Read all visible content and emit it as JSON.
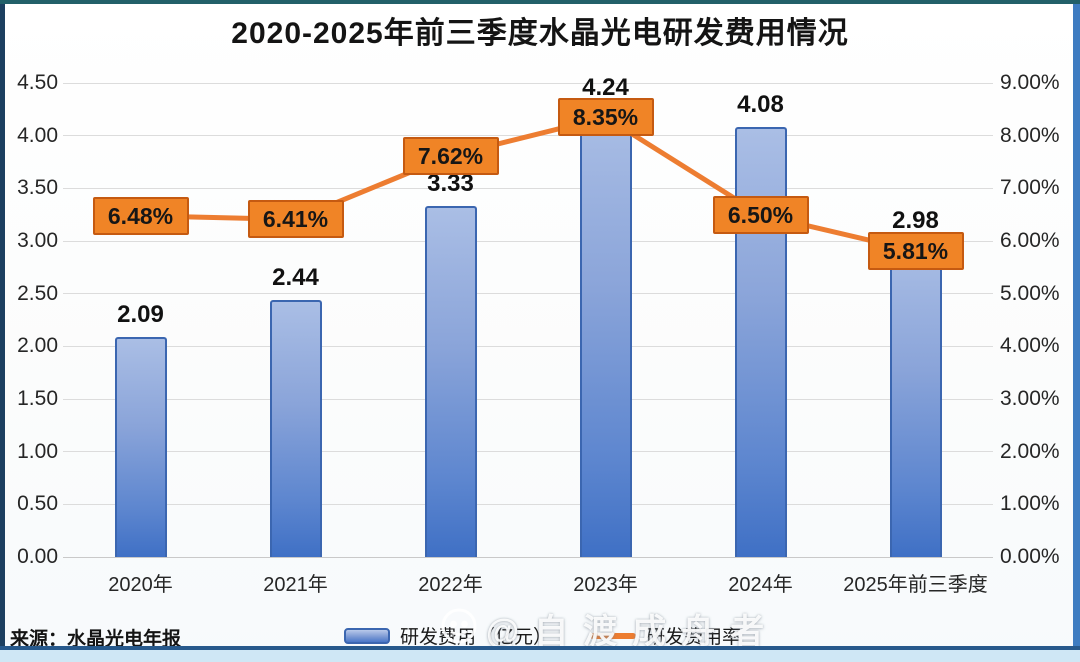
{
  "title": "2020-2025年前三季度水晶光电研发费用情况",
  "source_note": "来源：水晶光电年报",
  "legend": {
    "bar_label": "研发费用（亿元）",
    "line_label": "研发费用率"
  },
  "watermark": {
    "icon": "weibo-panda-icon",
    "text": "@自渡成舟者"
  },
  "colors": {
    "bar_fill": "#7d9ad4",
    "bar_border": "#3b66b0",
    "line": "#ED7D31",
    "pct_box_fill": "#F08426",
    "pct_box_border": "#C55A11"
  },
  "chart_data": {
    "type": "bar",
    "subtype": "combo-bar-line-dual-axis",
    "title": "2020-2025年前三季度水晶光电研发费用情况",
    "categories": [
      "2020年",
      "2021年",
      "2022年",
      "2023年",
      "2024年",
      "2025年前三季度"
    ],
    "series": [
      {
        "name": "研发费用（亿元）",
        "type": "bar",
        "axis": "left",
        "values": [
          2.09,
          2.44,
          3.33,
          4.24,
          4.08,
          2.98
        ],
        "labels": [
          "2.09",
          "2.44",
          "3.33",
          "4.24",
          "4.08",
          "2.98"
        ]
      },
      {
        "name": "研发费用率",
        "type": "line",
        "axis": "right",
        "values": [
          6.48,
          6.41,
          7.62,
          8.35,
          6.5,
          5.81
        ],
        "labels": [
          "6.48%",
          "6.41%",
          "7.62%",
          "8.35%",
          "6.50%",
          "5.81%"
        ]
      }
    ],
    "left_axis": {
      "min": 0,
      "max": 4.5,
      "step": 0.5,
      "ticks": [
        "0.00",
        "0.50",
        "1.00",
        "1.50",
        "2.00",
        "2.50",
        "3.00",
        "3.50",
        "4.00",
        "4.50"
      ]
    },
    "right_axis": {
      "min": 0,
      "max": 9,
      "step": 1,
      "ticks": [
        "0.00%",
        "1.00%",
        "2.00%",
        "3.00%",
        "4.00%",
        "5.00%",
        "6.00%",
        "7.00%",
        "8.00%",
        "9.00%"
      ]
    },
    "grid": true,
    "legend_position": "bottom",
    "source": "来源：水晶光电年报"
  }
}
